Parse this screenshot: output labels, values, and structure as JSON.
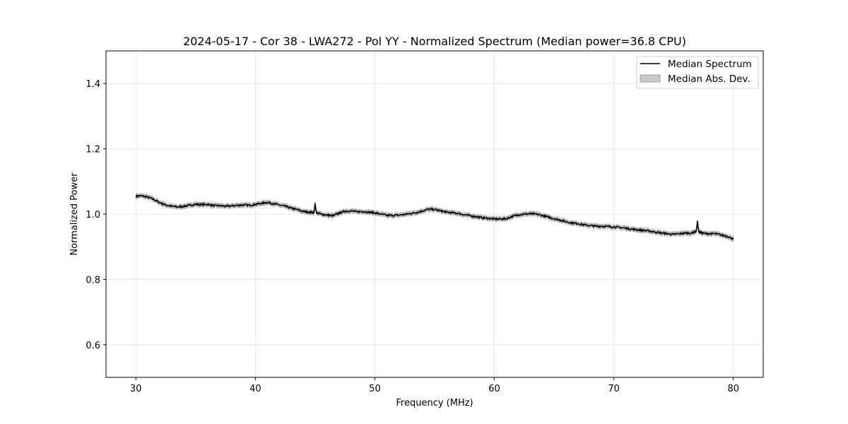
{
  "chart_data": {
    "type": "line",
    "title": "2024-05-17 - Cor 38 - LWA272 - Pol YY - Normalized Spectrum (Median power=36.8 CPU)",
    "xlabel": "Frequency (MHz)",
    "ylabel": "Normalized Power",
    "xlim": [
      27.5,
      82.5
    ],
    "ylim": [
      0.5,
      1.5
    ],
    "xticks": [
      30,
      40,
      50,
      60,
      70,
      80
    ],
    "yticks": [
      0.6,
      0.8,
      1.0,
      1.2,
      1.4
    ],
    "xtick_labels": [
      "30",
      "40",
      "50",
      "60",
      "70",
      "80"
    ],
    "ytick_labels": [
      "0.6",
      "0.8",
      "1.0",
      "1.2",
      "1.4"
    ],
    "grid": true,
    "legend_position": "top-right",
    "series": [
      {
        "name": "Median Spectrum",
        "color": "#000000",
        "x": [
          30,
          30.5,
          31,
          31.5,
          32,
          32.5,
          33,
          33.5,
          34,
          34.5,
          35,
          35.5,
          36,
          36.5,
          37,
          37.5,
          38,
          38.5,
          39,
          39.5,
          40,
          40.5,
          41,
          41.5,
          42,
          42.5,
          43,
          43.5,
          44,
          44.5,
          44.9,
          45,
          45.1,
          45.5,
          46,
          46.5,
          47,
          47.5,
          48,
          48.5,
          49,
          49.5,
          50,
          50.5,
          51,
          51.5,
          52,
          52.5,
          53,
          53.5,
          54,
          54.5,
          55,
          55.5,
          56,
          56.5,
          57,
          57.5,
          58,
          58.5,
          59,
          59.5,
          60,
          60.5,
          61,
          61.5,
          62,
          62.5,
          63,
          63.5,
          64,
          64.5,
          65,
          65.5,
          66,
          66.5,
          67,
          67.5,
          68,
          68.5,
          69,
          69.5,
          70,
          70.5,
          71,
          71.5,
          72,
          72.5,
          73,
          73.5,
          74,
          74.5,
          75,
          75.5,
          76,
          76.5,
          76.9,
          77,
          77.1,
          77.5,
          78,
          78.5,
          79,
          79.5,
          80
        ],
        "y": [
          1.055,
          1.056,
          1.052,
          1.045,
          1.035,
          1.028,
          1.024,
          1.022,
          1.024,
          1.027,
          1.03,
          1.029,
          1.03,
          1.026,
          1.026,
          1.024,
          1.025,
          1.027,
          1.028,
          1.027,
          1.03,
          1.033,
          1.036,
          1.032,
          1.028,
          1.024,
          1.018,
          1.014,
          1.008,
          1.006,
          1.005,
          1.032,
          1.004,
          1.0,
          0.997,
          0.995,
          1.003,
          1.009,
          1.01,
          1.007,
          1.008,
          1.006,
          1.004,
          1.0,
          0.996,
          0.996,
          0.997,
          0.999,
          1.002,
          1.005,
          1.01,
          1.015,
          1.014,
          1.01,
          1.006,
          1.004,
          1.002,
          0.998,
          0.995,
          0.992,
          0.989,
          0.987,
          0.985,
          0.985,
          0.986,
          0.993,
          0.998,
          1.0,
          1.001,
          1.0,
          0.996,
          0.991,
          0.986,
          0.982,
          0.977,
          0.973,
          0.971,
          0.967,
          0.965,
          0.963,
          0.963,
          0.962,
          0.961,
          0.959,
          0.957,
          0.954,
          0.952,
          0.95,
          0.948,
          0.945,
          0.942,
          0.94,
          0.938,
          0.94,
          0.942,
          0.942,
          0.948,
          0.978,
          0.946,
          0.941,
          0.94,
          0.94,
          0.936,
          0.932,
          0.924
        ]
      }
    ],
    "band": {
      "name": "Median Abs. Dev.",
      "color": "#c8c8c8",
      "edge_color": "#a0a0a0",
      "half_width": 0.006
    }
  }
}
